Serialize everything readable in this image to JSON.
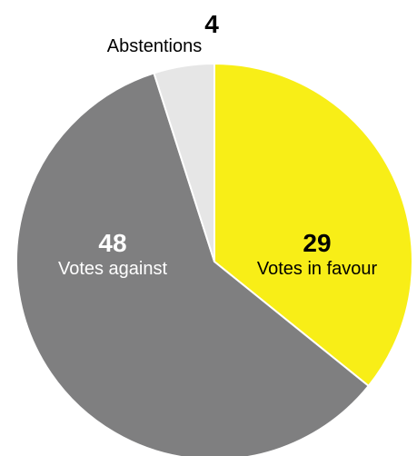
{
  "chart_data": {
    "type": "pie",
    "slices": [
      {
        "label": "Votes in favour",
        "value": 29,
        "color": "#f8ee17",
        "text_color": "#000000"
      },
      {
        "label": "Votes against",
        "value": 48,
        "color": "#7f7f80",
        "text_color": "#ffffff"
      },
      {
        "label": "Abstentions",
        "value": 4,
        "color": "#e6e6e6",
        "text_color": "#000000"
      }
    ],
    "start": "12 o'clock",
    "direction": "clockwise"
  }
}
